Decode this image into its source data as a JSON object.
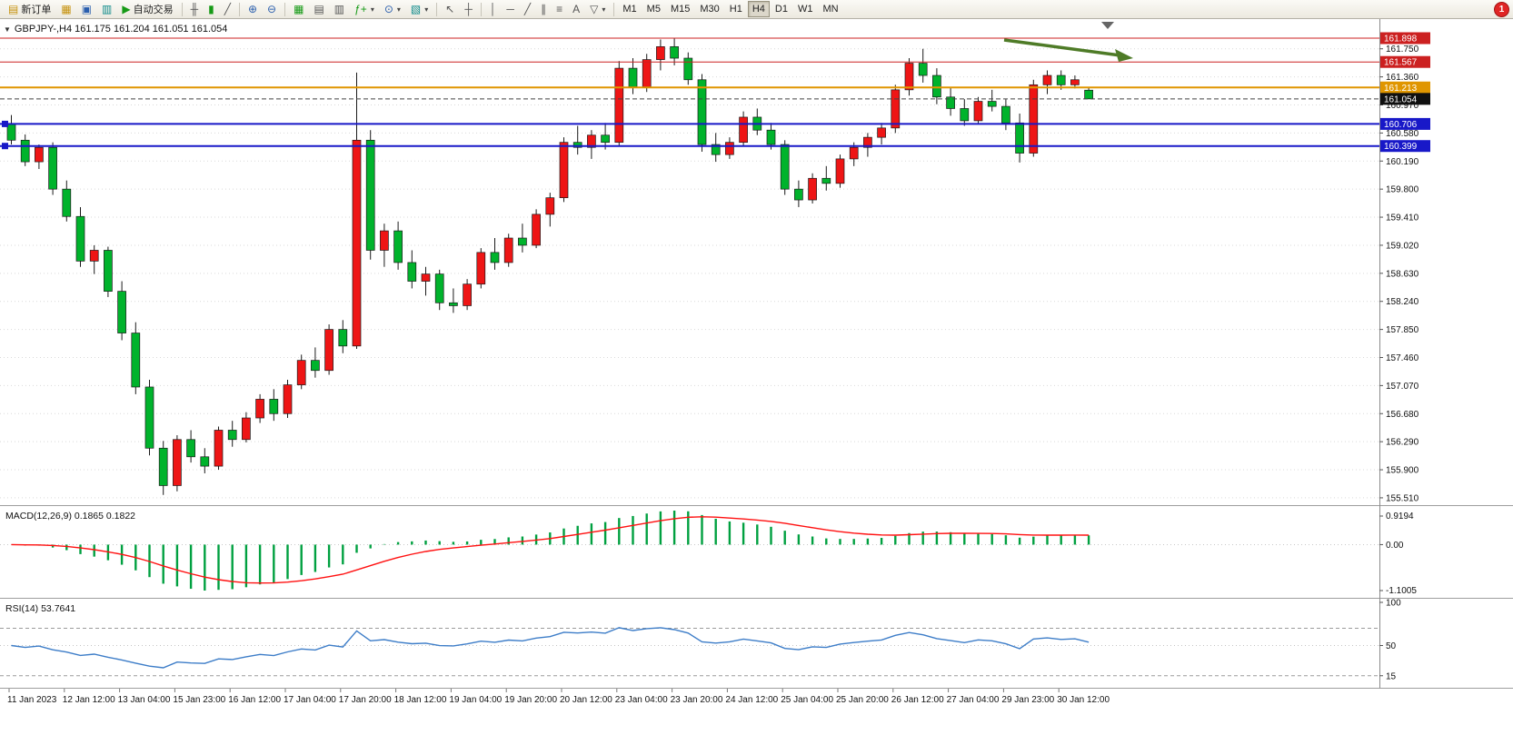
{
  "toolbar": {
    "new_order_label": "新订单",
    "auto_trading_label": "自动交易",
    "timeframes": [
      "M1",
      "M5",
      "M15",
      "M30",
      "H1",
      "H4",
      "D1",
      "W1",
      "MN"
    ],
    "active_timeframe": "H4",
    "notification_badge": "1",
    "icons": {
      "new_order": "▤",
      "new_chart": "▦",
      "profiles": "▣",
      "market_watch": "▥",
      "autotrade_play": "▶",
      "bars_chart": "╫",
      "candles_chart": "▮",
      "line_chart": "╱",
      "zoom_in": "⊕",
      "zoom_out": "⊖",
      "tile_windows": "▦",
      "arrange_windows": "▤",
      "cascade_windows": "▥",
      "indicators": "ƒ+",
      "periods": "⊙",
      "templates": "▧",
      "cursor": "↖",
      "crosshair": "┼",
      "vline": "│",
      "hline": "─",
      "trendline": "╱",
      "channel": "∥",
      "fibonacci": "≡",
      "text_tool": "A",
      "shapes": "▽",
      "caret": "▾"
    }
  },
  "chart": {
    "collapse_marker": "▼",
    "title": "GBPJPY-,H4 161.175 161.204 161.051 161.054"
  },
  "panels": {
    "macd_label": "MACD(12,26,9) 0.1865 0.1822",
    "rsi_label": "RSI(14) 53.7641"
  },
  "chart_data": {
    "type": "candlestick",
    "symbol": "GBPJPY-",
    "timeframe": "H4",
    "current_bar": {
      "open": 161.175,
      "high": 161.204,
      "low": 161.051,
      "close": 161.054
    },
    "current_price": 161.054,
    "price_ticks": [
      161.75,
      161.36,
      160.97,
      160.58,
      160.19,
      159.8,
      159.41,
      159.02,
      158.63,
      158.24,
      157.85,
      157.46,
      157.07,
      156.68,
      156.29,
      155.9,
      155.51
    ],
    "levels": [
      {
        "price": 161.898,
        "color": "#cc2020",
        "width": 1,
        "handles": false
      },
      {
        "price": 161.567,
        "color": "#cc2020",
        "width": 1,
        "handles": false
      },
      {
        "price": 161.213,
        "color": "#e09600",
        "width": 2,
        "handles": false
      },
      {
        "price": 160.706,
        "color": "#1818c8",
        "width": 2,
        "handles": true
      },
      {
        "price": 160.399,
        "color": "#1818c8",
        "width": 2,
        "handles": true
      }
    ],
    "candles": [
      [
        160.7,
        160.83,
        160.42,
        160.48
      ],
      [
        160.48,
        160.56,
        160.12,
        160.18
      ],
      [
        160.18,
        160.42,
        160.08,
        160.38
      ],
      [
        160.38,
        160.45,
        159.72,
        159.8
      ],
      [
        159.8,
        159.92,
        159.35,
        159.42
      ],
      [
        159.42,
        159.55,
        158.72,
        158.8
      ],
      [
        158.8,
        159.02,
        158.62,
        158.95
      ],
      [
        158.95,
        159.0,
        158.3,
        158.38
      ],
      [
        158.38,
        158.52,
        157.7,
        157.8
      ],
      [
        157.8,
        157.95,
        156.95,
        157.05
      ],
      [
        157.05,
        157.15,
        156.1,
        156.2
      ],
      [
        156.2,
        156.3,
        155.55,
        155.68
      ],
      [
        155.68,
        156.38,
        155.6,
        156.32
      ],
      [
        156.32,
        156.45,
        156.0,
        156.08
      ],
      [
        156.08,
        156.2,
        155.85,
        155.95
      ],
      [
        155.95,
        156.5,
        155.9,
        156.45
      ],
      [
        156.45,
        156.58,
        156.22,
        156.32
      ],
      [
        156.32,
        156.7,
        156.28,
        156.62
      ],
      [
        156.62,
        156.95,
        156.55,
        156.88
      ],
      [
        156.88,
        157.02,
        156.58,
        156.68
      ],
      [
        156.68,
        157.15,
        156.62,
        157.08
      ],
      [
        157.08,
        157.5,
        157.02,
        157.42
      ],
      [
        157.42,
        157.6,
        157.18,
        157.28
      ],
      [
        157.28,
        157.92,
        157.22,
        157.85
      ],
      [
        157.85,
        157.98,
        157.52,
        157.62
      ],
      [
        157.62,
        161.42,
        157.58,
        160.48
      ],
      [
        160.48,
        160.62,
        158.82,
        158.95
      ],
      [
        158.95,
        159.32,
        158.72,
        159.22
      ],
      [
        159.22,
        159.35,
        158.68,
        158.78
      ],
      [
        158.78,
        158.95,
        158.42,
        158.52
      ],
      [
        158.52,
        158.72,
        158.32,
        158.62
      ],
      [
        158.62,
        158.68,
        158.12,
        158.22
      ],
      [
        158.22,
        158.42,
        158.08,
        158.18
      ],
      [
        158.18,
        158.55,
        158.12,
        158.48
      ],
      [
        158.48,
        158.98,
        158.42,
        158.92
      ],
      [
        158.92,
        159.12,
        158.68,
        158.78
      ],
      [
        158.78,
        159.18,
        158.72,
        159.12
      ],
      [
        159.12,
        159.32,
        158.92,
        159.02
      ],
      [
        159.02,
        159.52,
        158.98,
        159.45
      ],
      [
        159.45,
        159.75,
        159.28,
        159.68
      ],
      [
        159.68,
        160.52,
        159.62,
        160.45
      ],
      [
        160.45,
        160.68,
        160.28,
        160.38
      ],
      [
        160.38,
        160.62,
        160.22,
        160.55
      ],
      [
        160.55,
        160.72,
        160.35,
        160.45
      ],
      [
        160.45,
        161.58,
        160.4,
        161.48
      ],
      [
        161.48,
        161.62,
        161.12,
        161.22
      ],
      [
        161.22,
        161.68,
        161.15,
        161.6
      ],
      [
        161.6,
        161.88,
        161.45,
        161.78
      ],
      [
        161.78,
        161.9,
        161.52,
        161.62
      ],
      [
        161.62,
        161.7,
        161.25,
        161.32
      ],
      [
        161.32,
        161.4,
        160.32,
        160.42
      ],
      [
        160.42,
        160.58,
        160.18,
        160.28
      ],
      [
        160.28,
        160.52,
        160.22,
        160.45
      ],
      [
        160.45,
        160.88,
        160.4,
        160.8
      ],
      [
        160.8,
        160.92,
        160.55,
        160.62
      ],
      [
        160.62,
        160.72,
        160.35,
        160.42
      ],
      [
        160.42,
        160.48,
        159.72,
        159.8
      ],
      [
        159.8,
        159.92,
        159.55,
        159.65
      ],
      [
        159.65,
        160.02,
        159.6,
        159.95
      ],
      [
        159.95,
        160.12,
        159.78,
        159.88
      ],
      [
        159.88,
        160.28,
        159.82,
        160.22
      ],
      [
        160.22,
        160.45,
        160.12,
        160.38
      ],
      [
        160.38,
        160.58,
        160.25,
        160.52
      ],
      [
        160.52,
        160.72,
        160.42,
        160.65
      ],
      [
        160.65,
        161.25,
        160.58,
        161.18
      ],
      [
        161.18,
        161.62,
        161.1,
        161.55
      ],
      [
        161.55,
        161.75,
        161.28,
        161.38
      ],
      [
        161.38,
        161.48,
        160.98,
        161.08
      ],
      [
        161.08,
        161.22,
        160.82,
        160.92
      ],
      [
        160.92,
        161.05,
        160.68,
        160.75
      ],
      [
        160.75,
        161.08,
        160.7,
        161.02
      ],
      [
        161.02,
        161.18,
        160.88,
        160.95
      ],
      [
        160.95,
        161.05,
        160.62,
        160.72
      ],
      [
        160.72,
        160.85,
        160.17,
        160.3
      ],
      [
        160.3,
        161.32,
        160.25,
        161.25
      ],
      [
        161.25,
        161.45,
        161.12,
        161.38
      ],
      [
        161.38,
        161.45,
        161.18,
        161.25
      ],
      [
        161.25,
        161.38,
        161.2,
        161.32
      ],
      [
        161.175,
        161.204,
        161.051,
        161.054
      ]
    ],
    "time_labels": [
      "11 Jan 2023",
      "12 Jan 12:00",
      "13 Jan 04:00",
      "15 Jan 23:00",
      "16 Jan 12:00",
      "17 Jan 04:00",
      "17 Jan 20:00",
      "18 Jan 12:00",
      "19 Jan 04:00",
      "19 Jan 20:00",
      "20 Jan 12:00",
      "23 Jan 04:00",
      "23 Jan 20:00",
      "24 Jan 12:00",
      "25 Jan 04:00",
      "25 Jan 20:00",
      "26 Jan 12:00",
      "27 Jan 04:00",
      "29 Jan 23:00",
      "30 Jan 12:00"
    ],
    "bars_per_label": 4,
    "indicators": {
      "macd": {
        "fast": 12,
        "slow": 26,
        "signal_period": 9,
        "main_value": 0.1865,
        "signal_value": 0.1822,
        "scale_labels": [
          "0.9194",
          "0.00",
          "-1.1005"
        ]
      },
      "rsi": {
        "period": 14,
        "value": 53.7641,
        "scale_labels": [
          "100",
          "50",
          "15"
        ],
        "levels": [
          70,
          50,
          15
        ]
      }
    },
    "annotation": {
      "type": "arrow",
      "direction": "down-right",
      "target_level": 161.567
    },
    "colors": {
      "up": "#ee1515",
      "down": "#00b32c",
      "wick": "#1a1a1a",
      "macd_hist": "#00a040",
      "macd_signal": "#ff1010",
      "rsi_line": "#3d7dc8",
      "grid": "#d9d9d9",
      "arrow": "#4e7b27",
      "current_price_box": "#101010",
      "axis_text": "#111111"
    }
  }
}
